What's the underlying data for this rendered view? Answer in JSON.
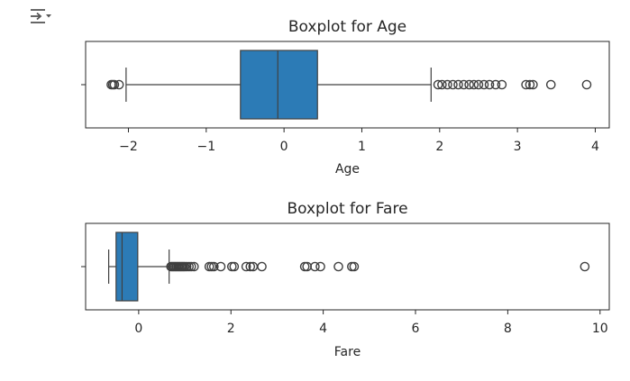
{
  "toolbar": {
    "output_icon": "output-collapse-icon"
  },
  "chart_data": [
    {
      "type": "boxplot",
      "title": "Boxplot for Age",
      "xlabel": "Age",
      "ylabel": "",
      "xlim": [
        -2.55,
        4.18
      ],
      "xticks": [
        -2,
        -1,
        0,
        1,
        2,
        3,
        4
      ],
      "xtick_labels": [
        "−2",
        "−1",
        "0",
        "1",
        "2",
        "3",
        "4"
      ],
      "box_color": "#2c7bb6",
      "grid": false,
      "stats": {
        "whisker_low": -2.03,
        "q1": -0.56,
        "median": -0.08,
        "q3": 0.43,
        "whisker_high": 1.89
      },
      "outliers": [
        -2.22,
        -2.2,
        -2.18,
        -2.12,
        1.98,
        2.03,
        2.1,
        2.17,
        2.24,
        2.31,
        2.38,
        2.44,
        2.5,
        2.57,
        2.64,
        2.72,
        2.8,
        3.11,
        3.16,
        3.2,
        3.43,
        3.89
      ]
    },
    {
      "type": "boxplot",
      "title": "Boxplot for Fare",
      "xlabel": "Fare",
      "ylabel": "",
      "xlim": [
        -1.15,
        10.2
      ],
      "xticks": [
        0,
        2,
        4,
        6,
        8,
        10
      ],
      "xtick_labels": [
        "0",
        "2",
        "4",
        "6",
        "8",
        "10"
      ],
      "box_color": "#2c7bb6",
      "grid": false,
      "stats": {
        "whisker_low": -0.65,
        "q1": -0.49,
        "median": -0.36,
        "q3": -0.02,
        "whisker_high": 0.66
      },
      "outliers": [
        0.7,
        0.73,
        0.76,
        0.79,
        0.82,
        0.85,
        0.88,
        0.91,
        0.94,
        0.97,
        1.0,
        1.04,
        1.09,
        1.14,
        1.2,
        1.53,
        1.58,
        1.63,
        1.78,
        2.02,
        2.07,
        2.33,
        2.42,
        2.48,
        2.67,
        3.6,
        3.65,
        3.82,
        3.94,
        4.33,
        4.62,
        4.67,
        9.67
      ]
    }
  ]
}
